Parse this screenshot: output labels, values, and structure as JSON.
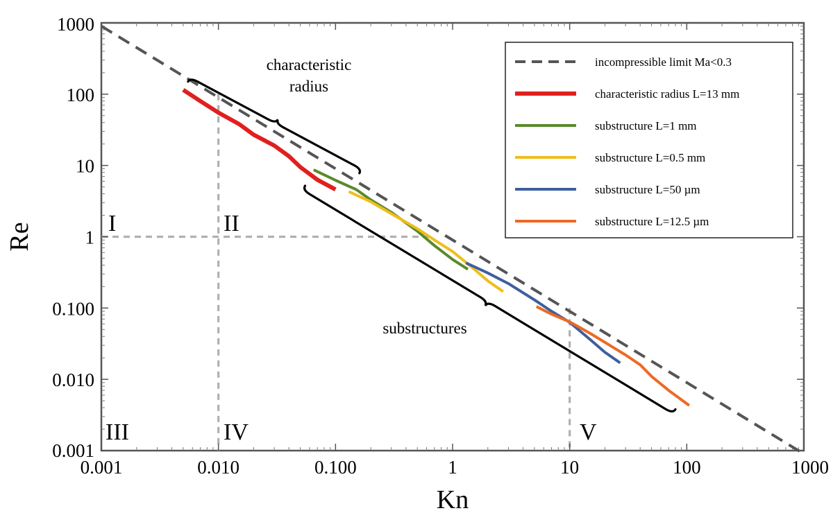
{
  "chart_data": {
    "type": "line",
    "x_scale": "log",
    "y_scale": "log",
    "xlabel": "Kn",
    "ylabel": "Re",
    "xlim": [
      0.001,
      1000
    ],
    "ylim": [
      0.001,
      1000
    ],
    "x_ticks": [
      0.001,
      0.01,
      0.1,
      1,
      10,
      100,
      1000
    ],
    "x_tick_labels": [
      "0.001",
      "0.010",
      "0.100",
      "1",
      "10",
      "100",
      "1000"
    ],
    "y_ticks": [
      0.001,
      0.01,
      0.1,
      1,
      10,
      100,
      1000
    ],
    "y_tick_labels": [
      "0.001",
      "0.010",
      "0.100",
      "1",
      "10",
      "100",
      "1000"
    ],
    "legend_position": "top-right",
    "series": [
      {
        "name": "incompressible limit Ma<0.3",
        "color": "#555555",
        "style": "dashed",
        "x": [
          0.001,
          1000
        ],
        "y": [
          900,
          0.0009
        ]
      },
      {
        "name": "characteristic radius L=13 mm",
        "color": "#e0201e",
        "style": "solid-thick",
        "x": [
          0.005,
          0.007,
          0.01,
          0.015,
          0.02,
          0.03,
          0.04,
          0.05,
          0.07,
          0.1
        ],
        "y": [
          115,
          80,
          55,
          38,
          27,
          19,
          13.5,
          9.5,
          6.3,
          4.6
        ]
      },
      {
        "name": "substructure L=1 mm",
        "color": "#5a8a2a",
        "style": "solid",
        "x": [
          0.065,
          0.1,
          0.15,
          0.2,
          0.3,
          0.5,
          0.7,
          1.0,
          1.35
        ],
        "y": [
          8.7,
          6.2,
          4.6,
          3.3,
          2.2,
          1.2,
          0.75,
          0.48,
          0.35
        ]
      },
      {
        "name": "substructure L=0.5 mm",
        "color": "#efbe1c",
        "style": "solid",
        "x": [
          0.13,
          0.2,
          0.3,
          0.5,
          0.7,
          1.0,
          1.5,
          2.0,
          2.7
        ],
        "y": [
          4.3,
          3.1,
          2.1,
          1.3,
          0.9,
          0.62,
          0.36,
          0.24,
          0.17
        ]
      },
      {
        "name": "substructure L=50 µm",
        "color": "#3e5f9e",
        "style": "solid",
        "x": [
          1.3,
          2.0,
          3.0,
          5.0,
          7.0,
          10,
          15,
          20,
          27
        ],
        "y": [
          0.43,
          0.31,
          0.22,
          0.13,
          0.09,
          0.063,
          0.036,
          0.024,
          0.017
        ]
      },
      {
        "name": "substructure L=12.5 µm",
        "color": "#ec6a24",
        "style": "solid",
        "x": [
          5.2,
          7,
          10,
          15,
          20,
          30,
          40,
          50,
          70,
          105
        ],
        "y": [
          0.105,
          0.082,
          0.064,
          0.044,
          0.033,
          0.022,
          0.016,
          0.011,
          0.007,
          0.0043
        ]
      }
    ],
    "gridlines": [
      {
        "orientation": "vertical",
        "x": 0.01,
        "y_range": [
          0.001,
          100
        ]
      },
      {
        "orientation": "vertical",
        "x": 10,
        "y_range": [
          0.001,
          0.1
        ]
      },
      {
        "orientation": "horizontal",
        "y": 1,
        "x_range": [
          0.001,
          0.7
        ]
      }
    ],
    "regions": [
      {
        "label": "I",
        "x": 0.0015,
        "y": 1.5
      },
      {
        "label": "II",
        "x": 0.015,
        "y": 1.5
      },
      {
        "label": "III",
        "x": 0.0015,
        "y": 0.0015
      },
      {
        "label": "IV",
        "x": 0.015,
        "y": 0.0015
      },
      {
        "label": "V",
        "x": 15,
        "y": 0.0015
      }
    ],
    "annotations": [
      {
        "text_lines": [
          "characteristic",
          "radius"
        ],
        "x": 0.05,
        "y": 160
      },
      {
        "text_lines": [
          "substructures"
        ],
        "x": 0.6,
        "y": 0.07
      }
    ]
  }
}
